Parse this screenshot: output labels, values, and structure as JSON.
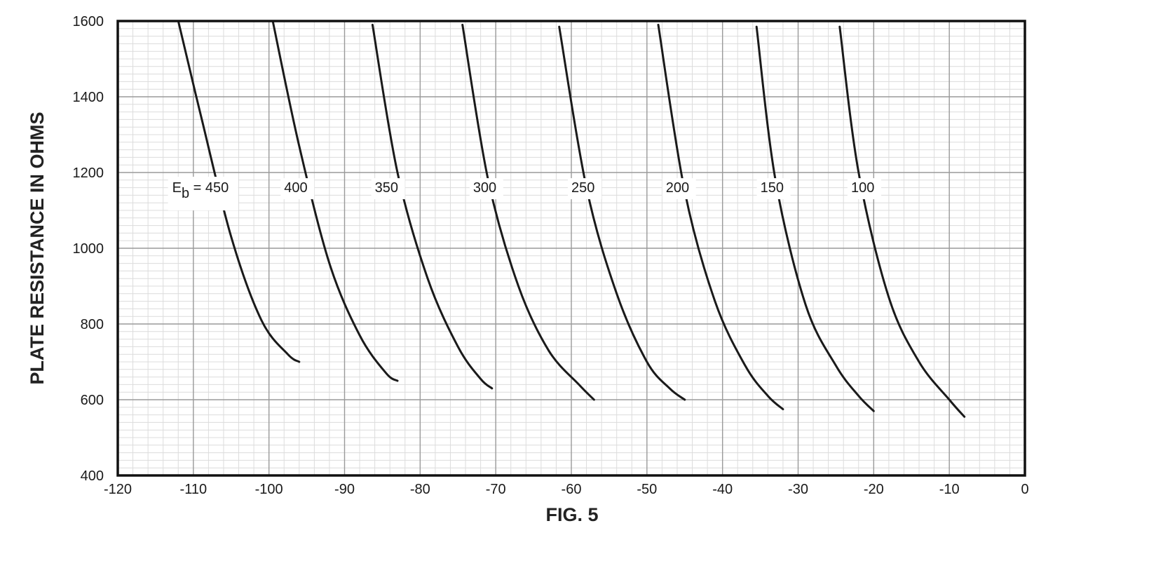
{
  "chart_data": {
    "type": "line",
    "title": "FIG. 5",
    "xlabel": "",
    "ylabel": "PLATE RESISTANCE IN OHMS",
    "xlim": [
      -120,
      0
    ],
    "ylim": [
      400,
      1600
    ],
    "x_ticks": [
      -120,
      -110,
      -100,
      -90,
      -80,
      -70,
      -60,
      -50,
      -40,
      -30,
      -20,
      -10,
      0
    ],
    "y_ticks": [
      400,
      600,
      800,
      1000,
      1200,
      1400,
      1600
    ],
    "grid": true,
    "legend": "none",
    "series": [
      {
        "name": "Eb = 450",
        "label_main": "E",
        "label_sub": "b",
        "label_rest": " = 450",
        "x": [
          -112,
          -109,
          -105,
          -101,
          -97.5,
          -96
        ],
        "y": [
          1600,
          1350,
          1030,
          810,
          720,
          700
        ]
      },
      {
        "name": "400",
        "x": [
          -99.5,
          -96,
          -92,
          -88,
          -84.5,
          -83
        ],
        "y": [
          1600,
          1270,
          960,
          770,
          670,
          650
        ]
      },
      {
        "name": "350",
        "x": [
          -86.3,
          -83,
          -79,
          -75,
          -72,
          -70.5
        ],
        "y": [
          1590,
          1200,
          920,
          740,
          655,
          630
        ]
      },
      {
        "name": "300",
        "x": [
          -74.4,
          -71,
          -67,
          -63,
          -59,
          -57
        ],
        "y": [
          1590,
          1180,
          900,
          730,
          640,
          600
        ]
      },
      {
        "name": "250",
        "x": [
          -61.6,
          -58,
          -54,
          -50,
          -47,
          -45
        ],
        "y": [
          1585,
          1160,
          880,
          700,
          630,
          600
        ]
      },
      {
        "name": "200",
        "x": [
          -48.5,
          -45,
          -41,
          -37,
          -34,
          -32
        ],
        "y": [
          1590,
          1150,
          860,
          690,
          610,
          575
        ]
      },
      {
        "name": "150",
        "x": [
          -35.5,
          -33,
          -29,
          -25,
          -22,
          -20
        ],
        "y": [
          1585,
          1180,
          850,
          690,
          610,
          570
        ]
      },
      {
        "name": "100",
        "x": [
          -24.5,
          -22,
          -18,
          -14,
          -10,
          -8
        ],
        "y": [
          1585,
          1200,
          870,
          700,
          600,
          555
        ]
      }
    ]
  }
}
